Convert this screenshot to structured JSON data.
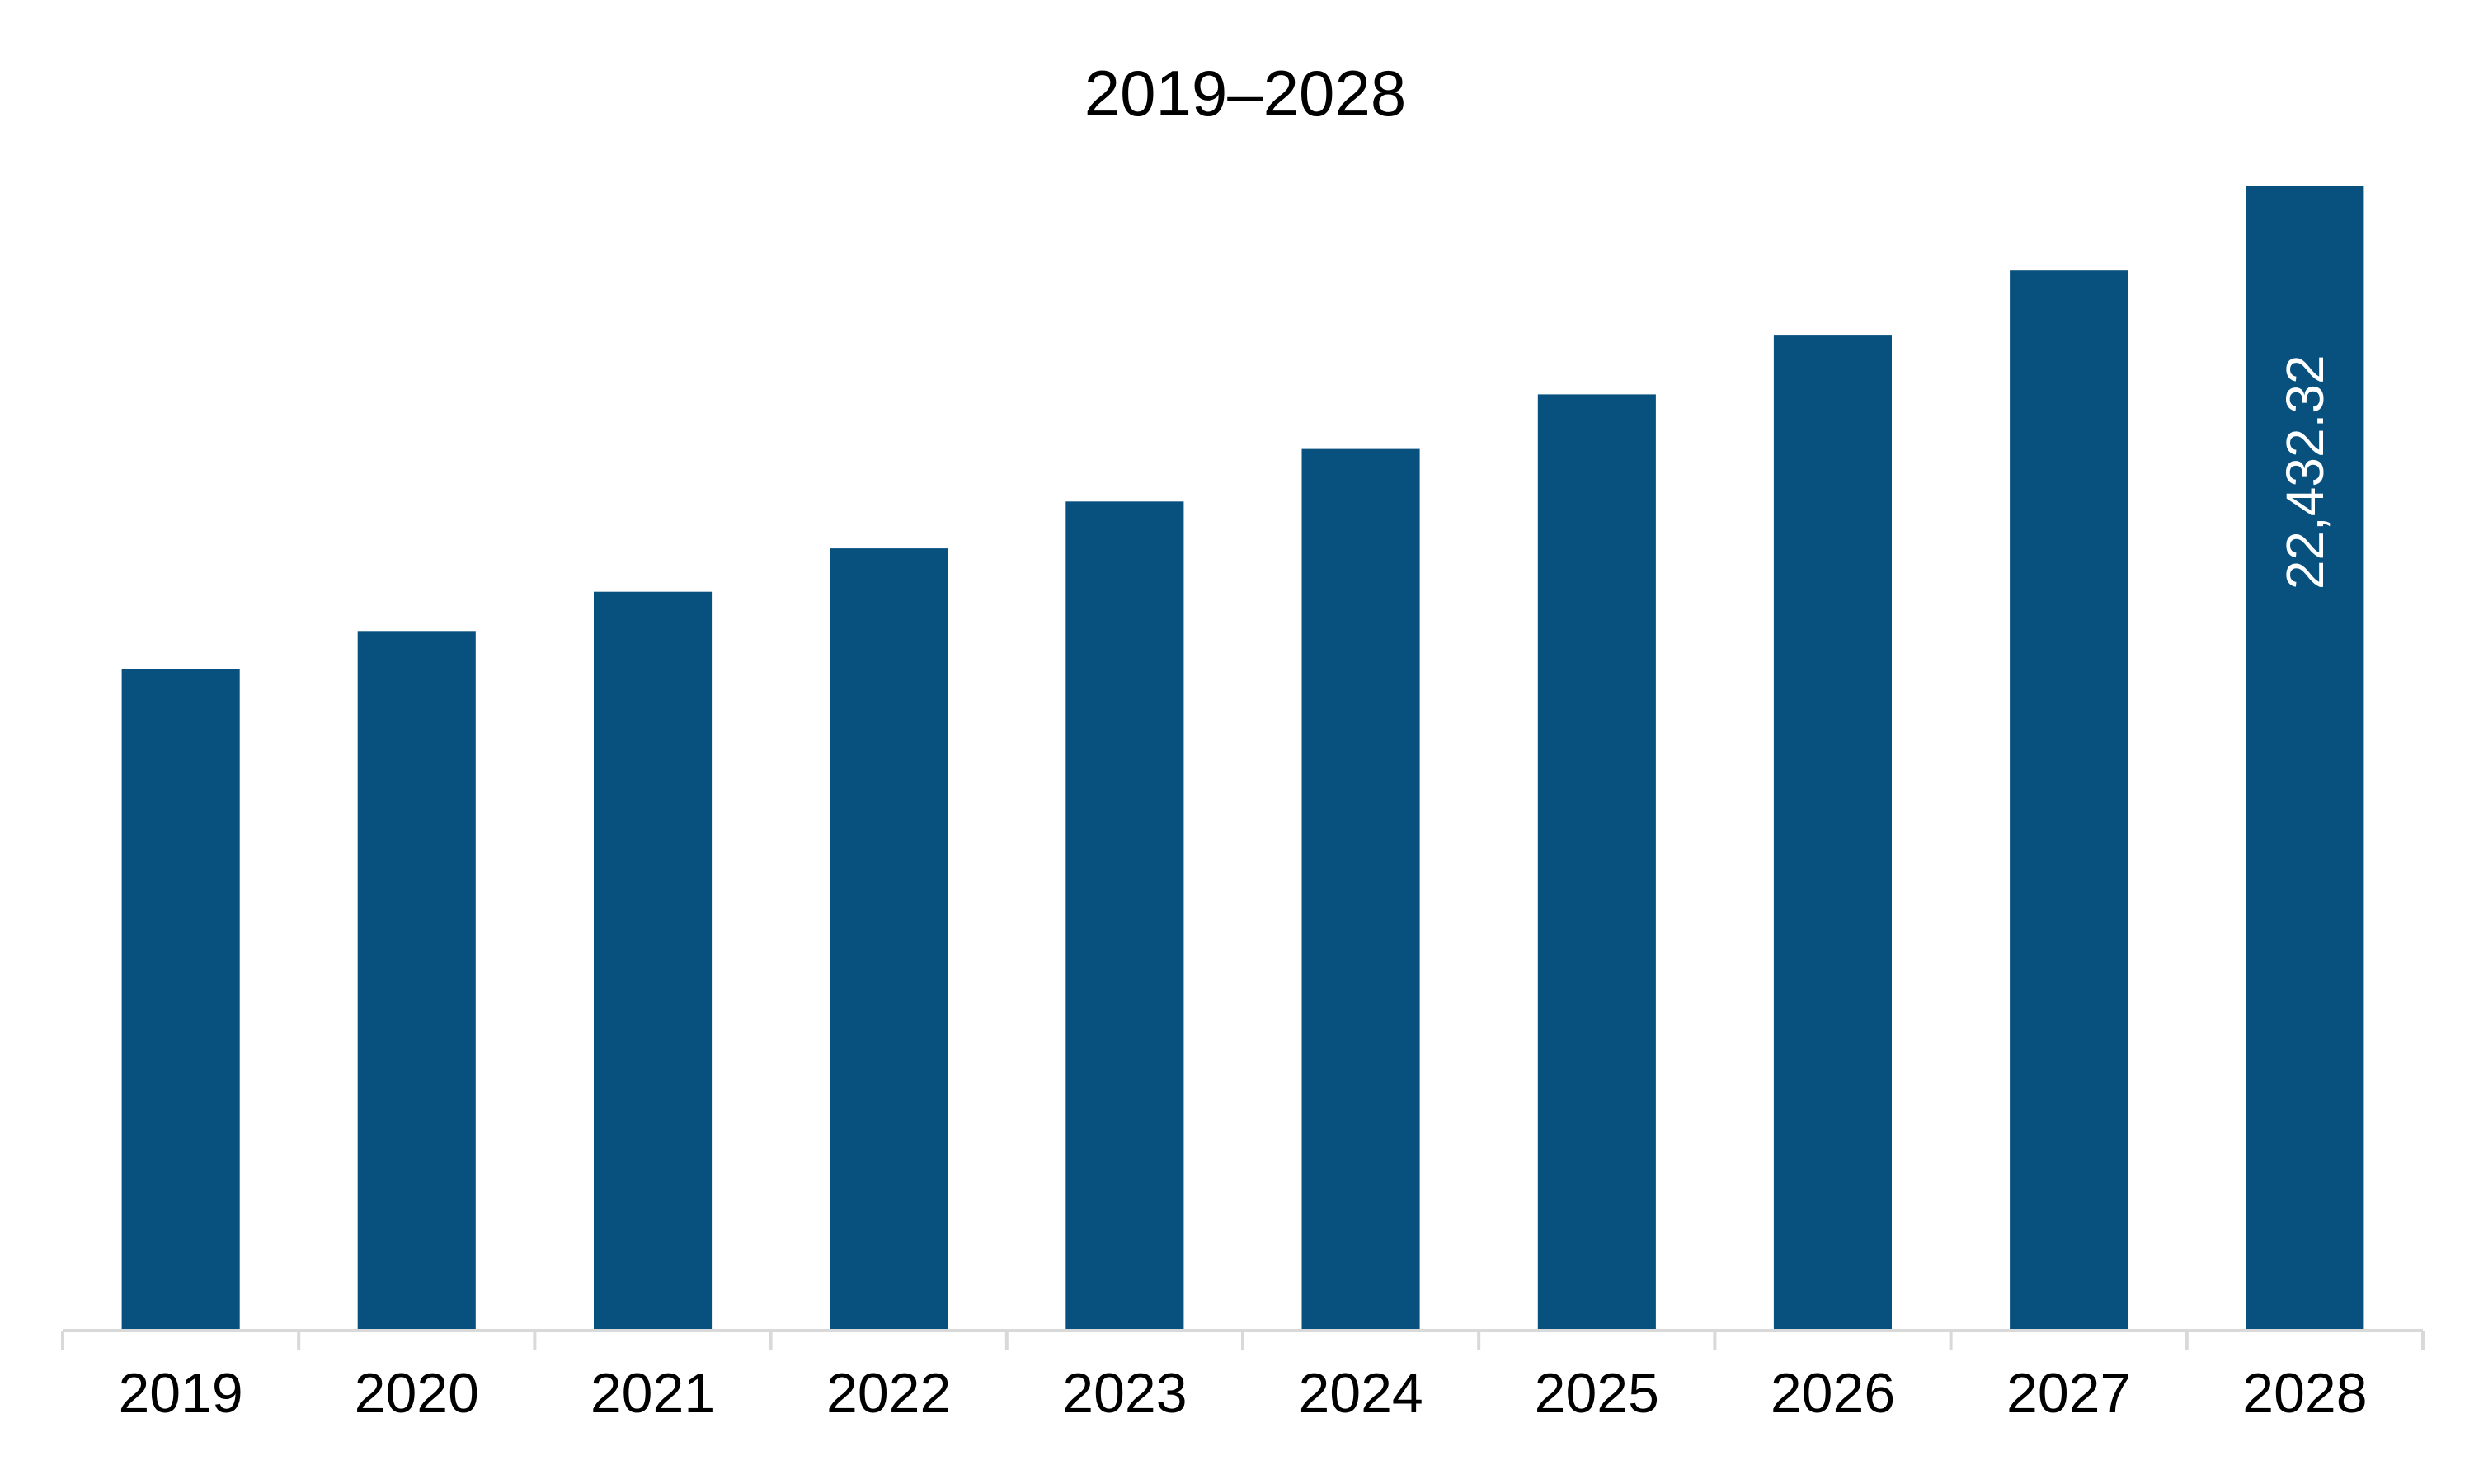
{
  "chart_data": {
    "type": "bar",
    "title": "2019–2028",
    "xlabel": "",
    "ylabel": "",
    "categories": [
      "2019",
      "2020",
      "2021",
      "2022",
      "2023",
      "2024",
      "2025",
      "2026",
      "2027",
      "2028"
    ],
    "values": [
      12960,
      13710,
      14480,
      15330,
      16250,
      17280,
      18350,
      19520,
      20780,
      22432.32
    ],
    "data_labels": [
      "",
      "",
      "",
      "",
      "",
      "",
      "",
      "",
      "",
      "22,432.32"
    ],
    "ylim": [
      0,
      22432.32
    ],
    "grid": false,
    "legend": "none",
    "colors": {
      "bar": "#08517F",
      "axis": "#D9D9D9",
      "text": "#000000",
      "data_label": "#FFFFFF"
    }
  }
}
